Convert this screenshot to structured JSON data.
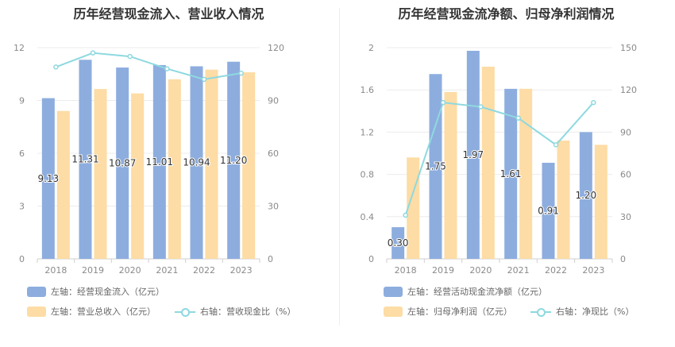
{
  "chart_data": [
    {
      "type": "bar+line",
      "title": "历年经营现金流入、营业收入情况",
      "categories": [
        "2018",
        "2019",
        "2020",
        "2021",
        "2022",
        "2023"
      ],
      "left_axis": {
        "min": 0,
        "max": 12,
        "ticks": [
          "0",
          "3",
          "6",
          "9",
          "12"
        ]
      },
      "right_axis": {
        "min": 0,
        "max": 120,
        "ticks": [
          "0",
          "30",
          "60",
          "90",
          "120"
        ]
      },
      "series": [
        {
          "name": "左轴：经营现金流入（亿元）",
          "type": "bar",
          "axis": "left",
          "color": "#8dadde",
          "values": [
            9.13,
            11.31,
            10.87,
            11.01,
            10.94,
            11.2
          ],
          "labels": [
            "9.13",
            "11.31",
            "10.87",
            "11.01",
            "10.94",
            "11.20"
          ]
        },
        {
          "name": "左轴：营业总收入（亿元）",
          "type": "bar",
          "axis": "left",
          "color": "#fddca5",
          "values": [
            8.4,
            9.65,
            9.4,
            10.2,
            10.75,
            10.6
          ]
        },
        {
          "name": "右轴：营收现金比（%）",
          "type": "line",
          "axis": "right",
          "color": "#8ed9e0",
          "values": [
            109,
            117,
            115,
            108,
            102,
            105.5
          ]
        }
      ]
    },
    {
      "type": "bar+line",
      "title": "历年经营现金流净额、归母净利润情况",
      "categories": [
        "2018",
        "2019",
        "2020",
        "2021",
        "2022",
        "2023"
      ],
      "left_axis": {
        "min": 0,
        "max": 2,
        "ticks": [
          "0",
          "0.4",
          "0.8",
          "1.2",
          "1.6",
          "2"
        ]
      },
      "right_axis": {
        "min": 0,
        "max": 150,
        "ticks": [
          "0",
          "30",
          "60",
          "90",
          "120",
          "150"
        ]
      },
      "series": [
        {
          "name": "左轴：经营活动现金流净额（亿元）",
          "type": "bar",
          "axis": "left",
          "color": "#8dadde",
          "values": [
            0.3,
            1.75,
            1.97,
            1.61,
            0.91,
            1.2
          ],
          "labels": [
            "0.30",
            "1.75",
            "1.97",
            "1.61",
            "0.91",
            "1.20"
          ]
        },
        {
          "name": "左轴：归母净利润（亿元）",
          "type": "bar",
          "axis": "left",
          "color": "#fddca5",
          "values": [
            0.96,
            1.58,
            1.82,
            1.61,
            1.12,
            1.08
          ]
        },
        {
          "name": "右轴：净现比（%）",
          "type": "line",
          "axis": "right",
          "color": "#8ed9e0",
          "values": [
            31,
            111,
            108,
            100,
            81,
            111
          ]
        }
      ]
    }
  ]
}
